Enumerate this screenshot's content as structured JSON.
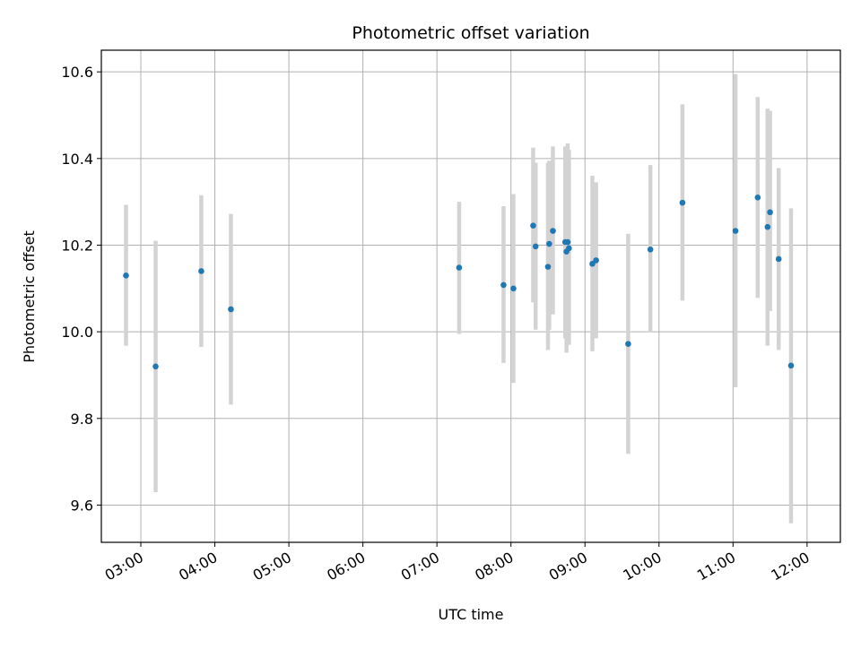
{
  "chart_data": {
    "type": "scatter",
    "title": "Photometric offset variation",
    "xlabel": "UTC time",
    "ylabel": "Photometric offset",
    "grid": true,
    "x_tick_labels": [
      "03:00",
      "04:00",
      "05:00",
      "06:00",
      "07:00",
      "08:00",
      "09:00",
      "10:00",
      "11:00",
      "12:00"
    ],
    "x_ticks": [
      "03:00",
      "04:00",
      "05:00",
      "06:00",
      "07:00",
      "08:00",
      "09:00",
      "10:00",
      "11:00",
      "12:00"
    ],
    "y_tick_labels": [
      "9.6",
      "9.8",
      "10.0",
      "10.2",
      "10.4",
      "10.6"
    ],
    "y_ticks": [
      9.6,
      9.8,
      10.0,
      10.2,
      10.4,
      10.6
    ],
    "xlim": [
      "02:28",
      "12:27"
    ],
    "ylim": [
      9.514,
      10.65
    ],
    "colors": {
      "points": "#1f77b4",
      "errorbars": "#d3d3d3",
      "grid": "#b0b0b0"
    },
    "points": [
      {
        "x": "02:48",
        "y": 10.13,
        "low": 9.968,
        "high": 10.293
      },
      {
        "x": "03:12",
        "y": 9.92,
        "low": 9.63,
        "high": 10.21
      },
      {
        "x": "03:49",
        "y": 10.14,
        "low": 9.965,
        "high": 10.315
      },
      {
        "x": "04:13",
        "y": 10.052,
        "low": 9.832,
        "high": 10.272
      },
      {
        "x": "07:18",
        "y": 10.148,
        "low": 9.995,
        "high": 10.3
      },
      {
        "x": "07:54",
        "y": 10.108,
        "low": 9.928,
        "high": 10.29
      },
      {
        "x": "08:02",
        "y": 10.1,
        "low": 9.882,
        "high": 10.318
      },
      {
        "x": "08:18",
        "y": 10.245,
        "low": 10.068,
        "high": 10.425
      },
      {
        "x": "08:20",
        "y": 10.197,
        "low": 10.005,
        "high": 10.39
      },
      {
        "x": "08:30",
        "y": 10.15,
        "low": 9.958,
        "high": 10.39
      },
      {
        "x": "08:31",
        "y": 10.203,
        "low": 10.005,
        "high": 10.395
      },
      {
        "x": "08:34",
        "y": 10.233,
        "low": 10.04,
        "high": 10.428
      },
      {
        "x": "08:44",
        "y": 10.207,
        "low": 9.985,
        "high": 10.428
      },
      {
        "x": "08:45",
        "y": 10.185,
        "low": 9.952,
        "high": 10.425
      },
      {
        "x": "08:46",
        "y": 10.207,
        "low": 9.97,
        "high": 10.435
      },
      {
        "x": "08:47",
        "y": 10.193,
        "low": 9.97,
        "high": 10.42
      },
      {
        "x": "09:06",
        "y": 10.157,
        "low": 9.955,
        "high": 10.36
      },
      {
        "x": "09:09",
        "y": 10.165,
        "low": 9.985,
        "high": 10.345
      },
      {
        "x": "09:35",
        "y": 9.972,
        "low": 9.718,
        "high": 10.226
      },
      {
        "x": "09:53",
        "y": 10.19,
        "low": 10.0,
        "high": 10.385
      },
      {
        "x": "10:19",
        "y": 10.298,
        "low": 10.072,
        "high": 10.525
      },
      {
        "x": "11:02",
        "y": 10.233,
        "low": 9.872,
        "high": 10.595
      },
      {
        "x": "11:20",
        "y": 10.31,
        "low": 10.078,
        "high": 10.542
      },
      {
        "x": "11:28",
        "y": 10.242,
        "low": 9.968,
        "high": 10.515
      },
      {
        "x": "11:30",
        "y": 10.276,
        "low": 10.048,
        "high": 10.51
      },
      {
        "x": "11:37",
        "y": 10.168,
        "low": 9.958,
        "high": 10.378
      },
      {
        "x": "11:47",
        "y": 9.922,
        "low": 9.558,
        "high": 10.285
      }
    ]
  }
}
